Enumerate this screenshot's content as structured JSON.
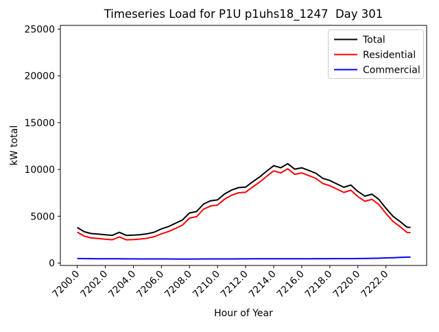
{
  "chart_data": {
    "type": "line",
    "title": "Timeseries Load for P1U p1uhs18_1247  Day 301",
    "xlabel": "Hour of Year",
    "ylabel": "kW total",
    "grid": false,
    "legend_position": "upper right",
    "xlim": [
      7198.8,
      7224.9
    ],
    "ylim": [
      -260,
      25400
    ],
    "x_ticks": [
      7200,
      7202,
      7204,
      7206,
      7208,
      7210,
      7212,
      7214,
      7216,
      7218,
      7220,
      7222
    ],
    "x_tick_labels": [
      "7200.0",
      "7202.0",
      "7204.0",
      "7206.0",
      "7208.0",
      "7210.0",
      "7212.0",
      "7214.0",
      "7216.0",
      "7218.0",
      "7220.0",
      "7222.0"
    ],
    "y_ticks": [
      0,
      5000,
      10000,
      15000,
      20000,
      25000
    ],
    "y_tick_labels": [
      "0",
      "5000",
      "10000",
      "15000",
      "20000",
      "25000"
    ],
    "x": [
      7200.0,
      7200.5,
      7201.0,
      7201.5,
      7202.0,
      7202.5,
      7203.0,
      7203.5,
      7204.0,
      7204.5,
      7205.0,
      7205.5,
      7206.0,
      7206.5,
      7207.0,
      7207.5,
      7208.0,
      7208.5,
      7209.0,
      7209.5,
      7210.0,
      7210.5,
      7211.0,
      7211.5,
      7212.0,
      7212.5,
      7213.0,
      7213.5,
      7214.0,
      7214.5,
      7215.0,
      7215.5,
      7216.0,
      7216.5,
      7217.0,
      7217.5,
      7218.0,
      7218.5,
      7219.0,
      7219.5,
      7220.0,
      7220.5,
      7221.0,
      7221.5,
      7222.0,
      7222.5,
      7223.0,
      7223.5,
      7223.75
    ],
    "series": [
      {
        "name": "Total",
        "color": "#000000",
        "values": [
          3800,
          3350,
          3150,
          3100,
          3020,
          2960,
          3280,
          2950,
          2980,
          3030,
          3130,
          3300,
          3650,
          3900,
          4250,
          4600,
          5350,
          5500,
          6300,
          6650,
          6750,
          7380,
          7800,
          8060,
          8120,
          8680,
          9200,
          9820,
          10400,
          10180,
          10620,
          10030,
          10180,
          9900,
          9600,
          9050,
          8820,
          8460,
          8100,
          8330,
          7650,
          7150,
          7360,
          6800,
          5850,
          5000,
          4450,
          3820,
          3810
        ]
      },
      {
        "name": "Residential",
        "color": "#ff0000",
        "values": [
          3300,
          2880,
          2680,
          2630,
          2550,
          2490,
          2790,
          2480,
          2510,
          2560,
          2660,
          2820,
          3120,
          3360,
          3700,
          4050,
          4800,
          4950,
          5750,
          6100,
          6200,
          6830,
          7250,
          7510,
          7570,
          8130,
          8650,
          9270,
          9850,
          9630,
          10070,
          9480,
          9630,
          9350,
          9050,
          8500,
          8270,
          7910,
          7550,
          7780,
          7100,
          6600,
          6810,
          6250,
          5300,
          4450,
          3900,
          3270,
          3260
        ]
      },
      {
        "name": "Commercial",
        "color": "#0000ff",
        "values": [
          480,
          470,
          465,
          460,
          455,
          450,
          450,
          445,
          445,
          440,
          440,
          440,
          435,
          435,
          430,
          430,
          430,
          430,
          435,
          435,
          440,
          440,
          440,
          445,
          445,
          450,
          450,
          450,
          455,
          455,
          455,
          460,
          460,
          460,
          465,
          465,
          465,
          470,
          470,
          475,
          480,
          490,
          500,
          520,
          545,
          570,
          600,
          625,
          640
        ]
      }
    ]
  }
}
